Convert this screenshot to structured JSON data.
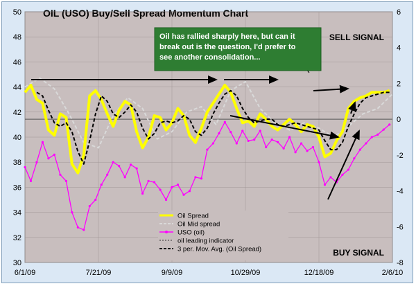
{
  "chart_data": {
    "type": "line",
    "title": "OIL (USO) Buy/Sell Spread Momentum Chart",
    "annotation": "Oil has rallied sharply here, but can it break out is the question, I'd prefer to see another consolidation...",
    "sell_signal": "SELL SIGNAL",
    "buy_signal": "BUY SIGNAL",
    "x_ticks": [
      "6/1/09",
      "7/21/09",
      "9/9/09",
      "10/29/09",
      "12/18/09",
      "2/6/10"
    ],
    "xlim": [
      0,
      250
    ],
    "y_left_ticks": [
      "30",
      "32",
      "34",
      "36",
      "38",
      "40",
      "42",
      "44",
      "46",
      "48",
      "50"
    ],
    "ylim_left": [
      30,
      50
    ],
    "y_right_ticks": [
      "-8",
      "-6",
      "-4",
      "-2",
      "0",
      "2",
      "4",
      "6"
    ],
    "ylim_right": [
      -8,
      6
    ],
    "grid": true,
    "legend_position": "bottom-center",
    "colors": {
      "plot_bg": "#c8bebe",
      "outer_bg": "#dbe8f5",
      "oil_spread": "#ffff00",
      "oil_mid_spread": "#d9d9d9",
      "uso": "#ff00ff",
      "leading": "#303030",
      "ma": "#000000",
      "note_bg": "#2e7d32"
    },
    "series": [
      {
        "name": "Oil Spread",
        "axis": "right",
        "x": [
          0,
          4,
          8,
          12,
          16,
          20,
          24,
          28,
          32,
          36,
          40,
          44,
          48,
          52,
          56,
          60,
          64,
          68,
          72,
          76,
          80,
          84,
          88,
          92,
          96,
          100,
          104,
          108,
          112,
          116,
          120,
          124,
          128,
          132,
          136,
          140,
          144,
          148,
          152,
          156,
          160,
          164,
          168,
          172,
          176,
          180,
          184,
          188,
          192,
          196,
          200,
          204,
          208,
          212,
          216,
          220,
          224,
          228,
          232,
          236,
          240,
          244,
          248
        ],
        "y": [
          1.5,
          1.9,
          1.1,
          0.9,
          -0.6,
          -0.9,
          0.3,
          0.1,
          -2.5,
          -3.0,
          -2.0,
          1.3,
          1.6,
          1.1,
          0.3,
          -0.4,
          0.5,
          1.0,
          0.8,
          -0.7,
          -1.6,
          -1.0,
          0.2,
          0.1,
          -0.6,
          -0.2,
          0.6,
          0.2,
          -0.9,
          -1.3,
          -0.5,
          0.4,
          0.9,
          1.4,
          1.9,
          1.5,
          0.6,
          -0.2,
          -0.1,
          -0.4,
          0.3,
          0.0,
          -0.4,
          -0.6,
          -0.3,
          0.0,
          -0.3,
          -0.7,
          -0.3,
          -0.4,
          -1.0,
          -2.1,
          -1.9,
          -1.2,
          -0.7,
          0.6,
          1.0,
          1.2,
          1.3,
          1.5,
          1.5,
          1.5,
          1.6
        ]
      },
      {
        "name": "Oil Mid spread",
        "axis": "right",
        "x": [
          0,
          10,
          20,
          30,
          40,
          50,
          60,
          70,
          80,
          90,
          100,
          110,
          120,
          130,
          140,
          150,
          160,
          170,
          180,
          190,
          200,
          210,
          220,
          230,
          240,
          250
        ],
        "y": [
          1.8,
          2.3,
          1.7,
          0.3,
          -1.3,
          -1.6,
          0.2,
          1.2,
          0.6,
          -1.1,
          -0.7,
          0.4,
          0.7,
          -0.3,
          1.6,
          2.1,
          0.6,
          -0.2,
          -0.6,
          -0.2,
          -0.5,
          -1.0,
          -0.4,
          0.3,
          0.6,
          1.4
        ]
      },
      {
        "name": "USO (oil)",
        "axis": "left",
        "x": [
          0,
          4,
          8,
          12,
          16,
          20,
          24,
          28,
          32,
          36,
          40,
          44,
          48,
          52,
          56,
          60,
          64,
          68,
          72,
          76,
          80,
          84,
          88,
          92,
          96,
          100,
          104,
          108,
          112,
          116,
          120,
          124,
          128,
          132,
          136,
          140,
          144,
          148,
          152,
          156,
          160,
          164,
          168,
          172,
          176,
          180,
          184,
          188,
          192,
          196,
          200,
          204,
          208,
          212,
          216,
          220,
          224,
          228,
          232,
          236,
          240,
          244,
          248
        ],
        "y": [
          37.6,
          36.5,
          38.0,
          39.6,
          38.3,
          38.6,
          37.0,
          36.5,
          34.0,
          32.8,
          32.6,
          34.5,
          35.0,
          36.2,
          37.0,
          38.0,
          37.7,
          36.8,
          37.8,
          37.5,
          35.5,
          36.5,
          36.4,
          35.8,
          35.0,
          36.0,
          36.2,
          35.4,
          35.7,
          36.8,
          36.7,
          39.0,
          39.5,
          40.3,
          41.2,
          40.4,
          39.5,
          40.5,
          39.7,
          39.8,
          40.5,
          39.2,
          39.8,
          39.6,
          39.1,
          40.0,
          38.8,
          39.5,
          38.9,
          39.2,
          38.0,
          36.2,
          36.8,
          36.4,
          37.0,
          37.4,
          38.3,
          39.0,
          39.5,
          40.0,
          40.2,
          40.6,
          41.0
        ]
      },
      {
        "name": "oil leading indicator",
        "axis": "right",
        "x": [],
        "y": []
      },
      {
        "name": "3 per. Mov. Avg. (Oil Spread)",
        "axis": "right",
        "x": [
          8,
          12,
          16,
          20,
          24,
          28,
          32,
          36,
          40,
          44,
          48,
          52,
          56,
          60,
          64,
          68,
          72,
          76,
          80,
          84,
          88,
          92,
          96,
          100,
          104,
          108,
          112,
          116,
          120,
          124,
          128,
          132,
          136,
          140,
          144,
          148,
          152,
          156,
          160,
          164,
          168,
          172,
          176,
          180,
          184,
          188,
          192,
          196,
          200,
          204,
          208,
          212,
          216,
          220,
          224,
          228,
          232,
          236,
          240,
          244,
          248
        ],
        "y": [
          1.5,
          1.3,
          0.5,
          -0.2,
          -0.4,
          -0.2,
          -0.7,
          -1.8,
          -2.5,
          -1.2,
          0.3,
          1.3,
          1.0,
          0.3,
          0.1,
          0.4,
          0.8,
          0.4,
          -0.5,
          -1.1,
          -0.8,
          -0.2,
          -0.1,
          -0.2,
          -0.1,
          0.2,
          0.0,
          -0.7,
          -0.9,
          -0.5,
          0.3,
          0.9,
          1.4,
          1.6,
          1.3,
          0.6,
          0.1,
          -0.2,
          -0.1,
          0.0,
          -0.0,
          -0.3,
          -0.4,
          -0.3,
          -0.2,
          -0.3,
          -0.4,
          -0.5,
          -0.6,
          -1.2,
          -1.7,
          -1.7,
          -1.3,
          -0.4,
          0.3,
          0.9,
          1.2,
          1.3,
          1.4,
          1.5,
          1.5
        ]
      }
    ]
  }
}
